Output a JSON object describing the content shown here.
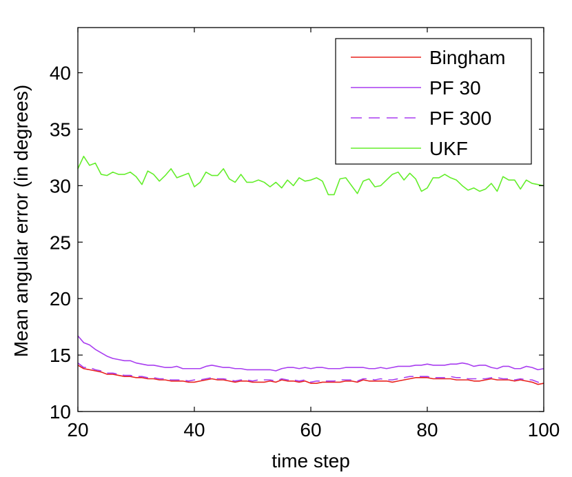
{
  "chart_data": {
    "type": "line",
    "xlabel": "time step",
    "ylabel": "Mean angular error (in degrees)",
    "xlim": [
      20,
      100
    ],
    "ylim": [
      10,
      44
    ],
    "xticks": [
      20,
      40,
      60,
      80,
      100
    ],
    "yticks": [
      10,
      15,
      20,
      25,
      30,
      35,
      40
    ],
    "grid": false,
    "legend_position": "top-right",
    "x": [
      20,
      21,
      22,
      23,
      24,
      25,
      26,
      27,
      28,
      29,
      30,
      31,
      32,
      33,
      34,
      35,
      36,
      37,
      38,
      39,
      40,
      41,
      42,
      43,
      44,
      45,
      46,
      47,
      48,
      49,
      50,
      51,
      52,
      53,
      54,
      55,
      56,
      57,
      58,
      59,
      60,
      61,
      62,
      63,
      64,
      65,
      66,
      67,
      68,
      69,
      70,
      71,
      72,
      73,
      74,
      75,
      76,
      77,
      78,
      79,
      80,
      81,
      82,
      83,
      84,
      85,
      86,
      87,
      88,
      89,
      90,
      91,
      92,
      93,
      94,
      95,
      96,
      97,
      98,
      99,
      100
    ],
    "series": [
      {
        "name": "Bingham",
        "color": "#e8201c",
        "dash": "solid",
        "values": [
          14.1,
          13.8,
          13.7,
          13.6,
          13.5,
          13.3,
          13.3,
          13.2,
          13.1,
          13.1,
          13.0,
          13.0,
          12.9,
          12.9,
          12.8,
          12.8,
          12.7,
          12.7,
          12.7,
          12.6,
          12.6,
          12.7,
          12.8,
          12.9,
          12.8,
          12.8,
          12.7,
          12.6,
          12.7,
          12.7,
          12.6,
          12.6,
          12.6,
          12.7,
          12.6,
          12.8,
          12.7,
          12.7,
          12.6,
          12.7,
          12.5,
          12.5,
          12.6,
          12.6,
          12.6,
          12.6,
          12.7,
          12.7,
          12.6,
          12.8,
          12.7,
          12.7,
          12.7,
          12.7,
          12.6,
          12.7,
          12.8,
          12.9,
          13.0,
          13.0,
          13.0,
          12.9,
          12.9,
          12.9,
          12.9,
          12.8,
          12.8,
          12.8,
          12.7,
          12.7,
          12.8,
          12.9,
          12.8,
          12.8,
          12.8,
          12.7,
          12.8,
          12.7,
          12.6,
          12.4,
          12.5
        ]
      },
      {
        "name": "PF 30",
        "color": "#a83cf0",
        "dash": "solid",
        "values": [
          16.7,
          16.1,
          15.9,
          15.5,
          15.2,
          14.9,
          14.7,
          14.6,
          14.5,
          14.5,
          14.3,
          14.2,
          14.1,
          14.1,
          14.0,
          13.9,
          13.9,
          14.0,
          13.8,
          13.8,
          13.8,
          13.8,
          14.0,
          14.1,
          14.0,
          13.9,
          13.9,
          13.8,
          13.8,
          13.7,
          13.7,
          13.7,
          13.7,
          13.7,
          13.6,
          13.8,
          13.9,
          13.9,
          13.8,
          13.9,
          13.8,
          13.9,
          13.9,
          13.8,
          13.8,
          13.8,
          13.9,
          13.9,
          13.9,
          13.9,
          13.8,
          13.8,
          13.9,
          13.8,
          13.9,
          14.0,
          14.0,
          14.0,
          14.1,
          14.1,
          14.2,
          14.1,
          14.1,
          14.1,
          14.2,
          14.2,
          14.3,
          14.2,
          14.0,
          14.1,
          14.1,
          13.9,
          13.8,
          14.0,
          14.0,
          13.8,
          13.8,
          14.0,
          13.9,
          13.7,
          13.8
        ]
      },
      {
        "name": "PF 300",
        "color": "#a83cf0",
        "dash": "dashed",
        "values": [
          14.3,
          13.9,
          13.9,
          13.7,
          13.6,
          13.4,
          13.4,
          13.3,
          13.2,
          13.2,
          13.1,
          13.1,
          13.0,
          13.0,
          12.9,
          12.9,
          12.8,
          12.8,
          12.8,
          12.7,
          12.8,
          12.8,
          12.9,
          13.0,
          12.9,
          12.9,
          12.8,
          12.7,
          12.8,
          12.8,
          12.7,
          12.8,
          12.8,
          12.8,
          12.7,
          12.9,
          12.8,
          12.8,
          12.7,
          12.8,
          12.6,
          12.7,
          12.7,
          12.7,
          12.7,
          12.8,
          12.8,
          12.8,
          12.7,
          12.9,
          12.9,
          12.8,
          12.9,
          12.8,
          12.8,
          12.9,
          13.0,
          13.1,
          13.1,
          13.1,
          13.1,
          13.0,
          13.0,
          13.0,
          13.1,
          13.0,
          13.0,
          12.9,
          12.9,
          12.9,
          12.9,
          13.0,
          13.0,
          12.9,
          12.9,
          12.8,
          12.9,
          12.8,
          12.8,
          12.6,
          12.5
        ]
      },
      {
        "name": "UKF",
        "color": "#63ee2a",
        "dash": "solid",
        "values": [
          31.5,
          32.6,
          31.8,
          32.0,
          31.0,
          30.9,
          31.2,
          31.0,
          31.0,
          31.2,
          30.8,
          30.1,
          31.3,
          31.0,
          30.4,
          30.9,
          31.5,
          30.7,
          30.9,
          31.1,
          29.9,
          30.3,
          31.2,
          30.9,
          30.9,
          31.5,
          30.6,
          30.3,
          31.0,
          30.3,
          30.3,
          30.5,
          30.3,
          29.9,
          30.3,
          29.8,
          30.5,
          30.0,
          30.7,
          30.4,
          30.5,
          30.7,
          30.4,
          29.2,
          29.2,
          30.6,
          30.7,
          30.0,
          29.3,
          30.4,
          30.6,
          29.9,
          30.0,
          30.5,
          31.0,
          31.2,
          30.5,
          31.1,
          30.6,
          29.5,
          29.8,
          30.7,
          30.7,
          31.0,
          30.7,
          30.5,
          30.0,
          29.6,
          29.8,
          29.5,
          29.7,
          30.2,
          29.5,
          30.8,
          30.5,
          30.5,
          29.7,
          30.5,
          30.2,
          30.1,
          30.0
        ]
      }
    ]
  }
}
